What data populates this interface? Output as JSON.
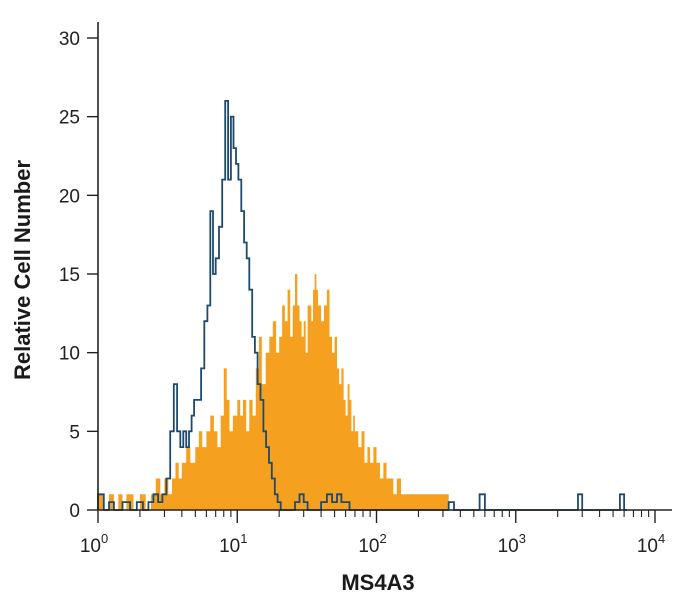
{
  "chart_data": {
    "type": "histogram",
    "xlabel": "MS4A3",
    "ylabel": "Relative Cell Number",
    "xscale": "log",
    "xlim": [
      1,
      10000
    ],
    "ylim": [
      0,
      30
    ],
    "x_ticks": [
      {
        "value": 1,
        "base": "10",
        "exp": "0"
      },
      {
        "value": 10,
        "base": "10",
        "exp": "1"
      },
      {
        "value": 100,
        "base": "10",
        "exp": "2"
      },
      {
        "value": 1000,
        "base": "10",
        "exp": "3"
      },
      {
        "value": 10000,
        "base": "10",
        "exp": "4"
      }
    ],
    "y_ticks": [
      "0",
      "5",
      "10",
      "15",
      "20",
      "25",
      "30"
    ],
    "grid": false,
    "legend": "none",
    "series": [
      {
        "style": "filled",
        "color": "#f5a01e",
        "points": [
          [
            1.0,
            1
          ],
          [
            1.1,
            0
          ],
          [
            1.2,
            1
          ],
          [
            1.3,
            0
          ],
          [
            1.4,
            1
          ],
          [
            1.5,
            0
          ],
          [
            1.6,
            1
          ],
          [
            1.8,
            0
          ],
          [
            2.0,
            1
          ],
          [
            2.2,
            0
          ],
          [
            2.4,
            1
          ],
          [
            2.6,
            2
          ],
          [
            2.8,
            1
          ],
          [
            3.0,
            2
          ],
          [
            3.2,
            1
          ],
          [
            3.4,
            2
          ],
          [
            3.6,
            3
          ],
          [
            3.8,
            2
          ],
          [
            4.0,
            3
          ],
          [
            4.3,
            4
          ],
          [
            4.6,
            3
          ],
          [
            5.0,
            4
          ],
          [
            5.3,
            5
          ],
          [
            5.6,
            4
          ],
          [
            6.0,
            5
          ],
          [
            6.4,
            6
          ],
          [
            6.8,
            5
          ],
          [
            7.2,
            4
          ],
          [
            7.6,
            6
          ],
          [
            8.0,
            9
          ],
          [
            8.4,
            7
          ],
          [
            8.8,
            5
          ],
          [
            9.3,
            6
          ],
          [
            10,
            7
          ],
          [
            10.5,
            6
          ],
          [
            11,
            7
          ],
          [
            11.6,
            5
          ],
          [
            12.2,
            7
          ],
          [
            12.9,
            6
          ],
          [
            13.6,
            9
          ],
          [
            14.3,
            11
          ],
          [
            15,
            8
          ],
          [
            16,
            10
          ],
          [
            17,
            11
          ],
          [
            18,
            12
          ],
          [
            19,
            10
          ],
          [
            20,
            11
          ],
          [
            21,
            13
          ],
          [
            22,
            12
          ],
          [
            23,
            14
          ],
          [
            24,
            11
          ],
          [
            25,
            13
          ],
          [
            26,
            15
          ],
          [
            27,
            13
          ],
          [
            28,
            12
          ],
          [
            29,
            11
          ],
          [
            30,
            12
          ],
          [
            31,
            10
          ],
          [
            32,
            13
          ],
          [
            34,
            12
          ],
          [
            35,
            14
          ],
          [
            36,
            15
          ],
          [
            37,
            14
          ],
          [
            38,
            13
          ],
          [
            40,
            12
          ],
          [
            42,
            13
          ],
          [
            44,
            14
          ],
          [
            46,
            11
          ],
          [
            48,
            10
          ],
          [
            50,
            11
          ],
          [
            52,
            9
          ],
          [
            54,
            8
          ],
          [
            56,
            9
          ],
          [
            58,
            7
          ],
          [
            60,
            6
          ],
          [
            62,
            8
          ],
          [
            64,
            7
          ],
          [
            66,
            5
          ],
          [
            68,
            6
          ],
          [
            70,
            5
          ],
          [
            74,
            4
          ],
          [
            78,
            5
          ],
          [
            82,
            3
          ],
          [
            86,
            4
          ],
          [
            90,
            3
          ],
          [
            95,
            4
          ],
          [
            100,
            3
          ],
          [
            106,
            2
          ],
          [
            112,
            3
          ],
          [
            118,
            2
          ],
          [
            125,
            2
          ],
          [
            132,
            1
          ],
          [
            140,
            2
          ],
          [
            150,
            1
          ],
          [
            160,
            1
          ],
          [
            175,
            1
          ],
          [
            190,
            1
          ],
          [
            210,
            1
          ],
          [
            230,
            1
          ],
          [
            250,
            1
          ],
          [
            275,
            1
          ],
          [
            300,
            1
          ],
          [
            330,
            0
          ]
        ]
      },
      {
        "style": "outline",
        "color": "#1e4a6e",
        "points": [
          [
            1.0,
            1
          ],
          [
            1.1,
            0
          ],
          [
            1.2,
            0.5
          ],
          [
            1.3,
            0
          ],
          [
            1.5,
            0.5
          ],
          [
            1.7,
            0
          ],
          [
            1.9,
            0.5
          ],
          [
            2.1,
            0
          ],
          [
            2.3,
            0.5
          ],
          [
            2.5,
            1
          ],
          [
            2.7,
            0.5
          ],
          [
            2.9,
            1
          ],
          [
            3.1,
            2
          ],
          [
            3.3,
            5
          ],
          [
            3.5,
            8
          ],
          [
            3.7,
            5
          ],
          [
            3.9,
            4
          ],
          [
            4.1,
            5
          ],
          [
            4.3,
            4
          ],
          [
            4.5,
            5
          ],
          [
            4.7,
            6
          ],
          [
            4.9,
            7
          ],
          [
            5.2,
            7
          ],
          [
            5.5,
            9
          ],
          [
            5.8,
            12
          ],
          [
            6.1,
            13
          ],
          [
            6.4,
            19
          ],
          [
            6.7,
            15
          ],
          [
            7.0,
            16
          ],
          [
            7.4,
            18
          ],
          [
            7.8,
            21
          ],
          [
            8.2,
            26
          ],
          [
            8.6,
            21
          ],
          [
            9.0,
            25
          ],
          [
            9.4,
            23
          ],
          [
            9.8,
            22
          ],
          [
            10.2,
            21
          ],
          [
            10.7,
            19
          ],
          [
            11.2,
            17
          ],
          [
            11.7,
            16
          ],
          [
            12.2,
            14
          ],
          [
            12.8,
            11
          ],
          [
            13.4,
            10
          ],
          [
            14.0,
            8
          ],
          [
            14.7,
            7
          ],
          [
            15.4,
            5
          ],
          [
            16.1,
            4
          ],
          [
            16.9,
            3
          ],
          [
            17.7,
            2
          ],
          [
            18.6,
            1
          ],
          [
            19.5,
            0.5
          ],
          [
            20.5,
            0
          ],
          [
            22,
            0
          ],
          [
            24,
            0
          ],
          [
            26,
            0.5
          ],
          [
            28,
            1
          ],
          [
            30,
            0.5
          ],
          [
            32,
            0
          ],
          [
            36,
            0
          ],
          [
            40,
            0.5
          ],
          [
            44,
            1
          ],
          [
            48,
            0.5
          ],
          [
            52,
            1
          ],
          [
            56,
            0.5
          ],
          [
            60,
            0.5
          ],
          [
            64,
            0
          ],
          [
            70,
            0
          ],
          [
            100,
            0
          ],
          [
            200,
            0
          ],
          [
            300,
            0
          ],
          [
            330,
            0.5
          ],
          [
            360,
            0
          ],
          [
            400,
            0
          ],
          [
            550,
            1
          ],
          [
            600,
            0
          ],
          [
            1000,
            0
          ],
          [
            2000,
            0
          ],
          [
            2800,
            1
          ],
          [
            3000,
            0
          ],
          [
            5000,
            0
          ],
          [
            5600,
            1
          ],
          [
            6000,
            0
          ]
        ]
      }
    ]
  }
}
